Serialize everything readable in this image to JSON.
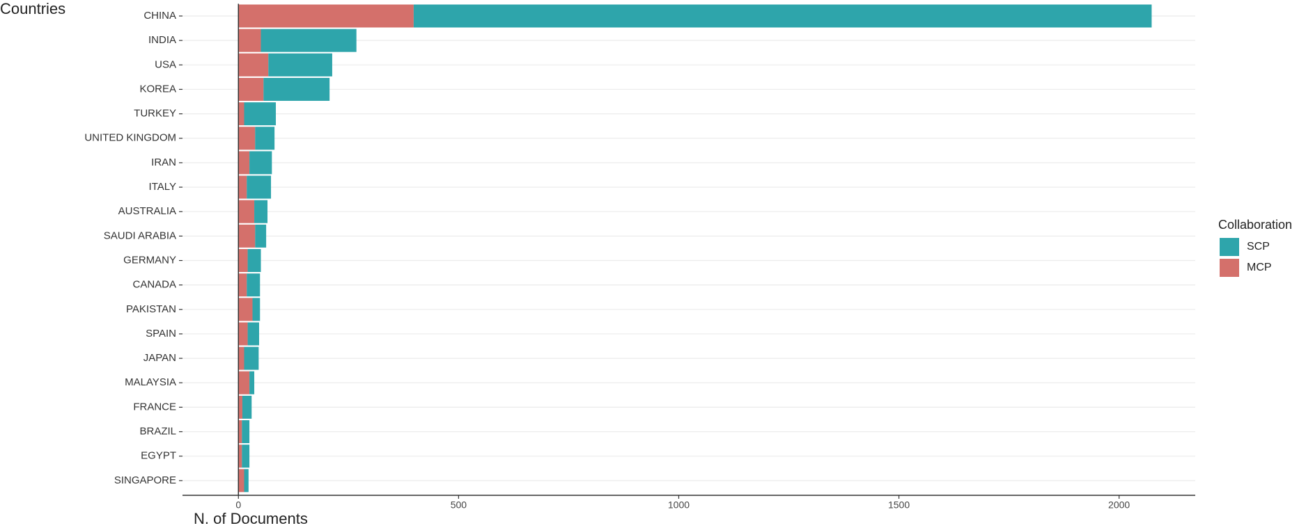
{
  "chart_data": {
    "type": "stacked-barh",
    "y_title": "Countries",
    "x_title": "N. of Documents",
    "legend_title": "Collaboration",
    "categories": [
      "CHINA",
      "INDIA",
      "USA",
      "KOREA",
      "TURKEY",
      "UNITED KINGDOM",
      "IRAN",
      "ITALY",
      "AUSTRALIA",
      "SAUDI ARABIA",
      "GERMANY",
      "CANADA",
      "PAKISTAN",
      "SPAIN",
      "JAPAN",
      "MALAYSIA",
      "FRANCE",
      "BRAZIL",
      "EGYPT",
      "SINGAPORE"
    ],
    "series": [
      {
        "name": "SCP",
        "color": "#2ea5ab",
        "values": [
          1676,
          217,
          145,
          150,
          72,
          44,
          51,
          55,
          30,
          25,
          30,
          30,
          17,
          26,
          33,
          11,
          21,
          17,
          17,
          10
        ]
      },
      {
        "name": "MCP",
        "color": "#d4706b",
        "values": [
          398,
          51,
          68,
          57,
          13,
          38,
          25,
          19,
          36,
          38,
          21,
          19,
          32,
          21,
          13,
          25,
          9,
          8,
          8,
          13
        ]
      }
    ],
    "stack_order": [
      "MCP",
      "SCP"
    ],
    "xlim": [
      -127,
      2173
    ],
    "xticks": [
      0,
      500,
      1000,
      1500,
      2000
    ],
    "grid": true,
    "legend": "right"
  }
}
